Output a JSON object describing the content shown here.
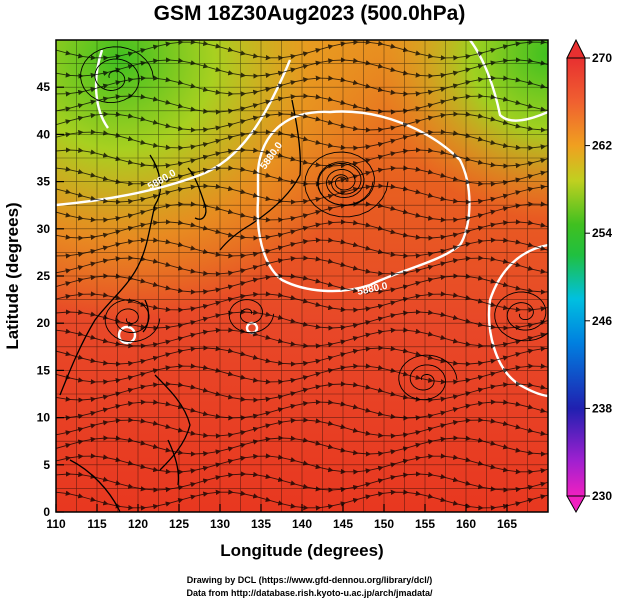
{
  "title": "GSM 18Z30Aug2023 (500.0hPa)",
  "xlabel": "Longitude (degrees)",
  "ylabel": "Latitude  (degrees)",
  "x_ticks": [
    "110",
    "115",
    "120",
    "125",
    "130",
    "135",
    "140",
    "145",
    "150",
    "155",
    "160",
    "165"
  ],
  "y_ticks": [
    "0",
    "5",
    "10",
    "15",
    "20",
    "25",
    "30",
    "35",
    "40",
    "45"
  ],
  "colorbar": {
    "ticks": [
      "230",
      "238",
      "246",
      "254",
      "262",
      "270"
    ]
  },
  "contour_labels": [
    "5880.0",
    "5880.0",
    "5880.0"
  ],
  "credits": {
    "line1": "Drawing by DCL (https://www.gfd-dennou.org/library/dcl/)",
    "line2": "Data from http://database.rish.kyoto-u.ac.jp/arch/jmadata/"
  },
  "chart_data": {
    "type": "heatmap",
    "title": "GSM 18Z30Aug2023 (500.0hPa)",
    "xlabel": "Longitude (degrees)",
    "ylabel": "Latitude  (degrees)",
    "xlim": [
      110,
      170
    ],
    "ylim": [
      0,
      50
    ],
    "colorbar_range": [
      230,
      270
    ],
    "colorbar_ticks": [
      230,
      238,
      246,
      254,
      262,
      270
    ],
    "colors": {
      "low": "#ff00ff",
      "mid_low": "#0000c0",
      "mid": "#00c0ff",
      "mid_high": "#40c000",
      "high_mid": "#f0a000",
      "high": "#e83020"
    },
    "contour_level": 5880.0,
    "highs": [
      {
        "lon": 119,
        "lat": 20.5
      },
      {
        "lon": 134,
        "lat": 21.5
      }
    ]
  }
}
